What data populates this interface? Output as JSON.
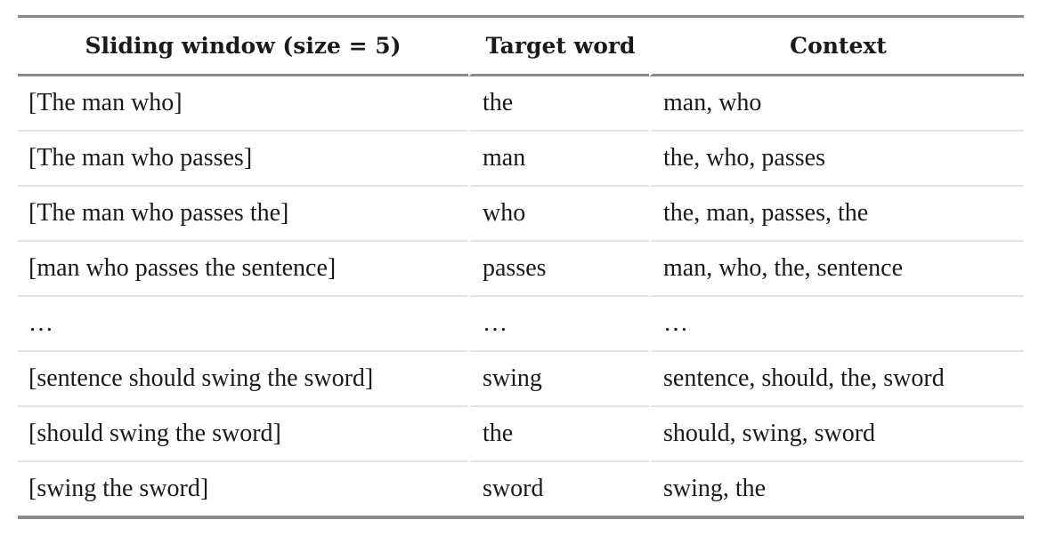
{
  "table": {
    "headers": [
      "Sliding window (size = 5)",
      "Target word",
      "Context"
    ],
    "rows": [
      {
        "window": "[The man who]",
        "target": "the",
        "context": "man, who"
      },
      {
        "window": "[The man who passes]",
        "target": "man",
        "context": "the, who, passes"
      },
      {
        "window": "[The man who passes the]",
        "target": "who",
        "context": "the, man, passes, the"
      },
      {
        "window": "[man who passes the sentence]",
        "target": "passes",
        "context": "man, who, the, sentence"
      },
      {
        "window": "…",
        "target": "…",
        "context": "…"
      },
      {
        "window": "[sentence should swing the sword]",
        "target": "swing",
        "context": "sentence, should, the, sword"
      },
      {
        "window": "[should swing the sword]",
        "target": "the",
        "context": "should, swing, sword"
      },
      {
        "window": "[swing the sword]",
        "target": "sword",
        "context": "swing, the"
      }
    ]
  }
}
